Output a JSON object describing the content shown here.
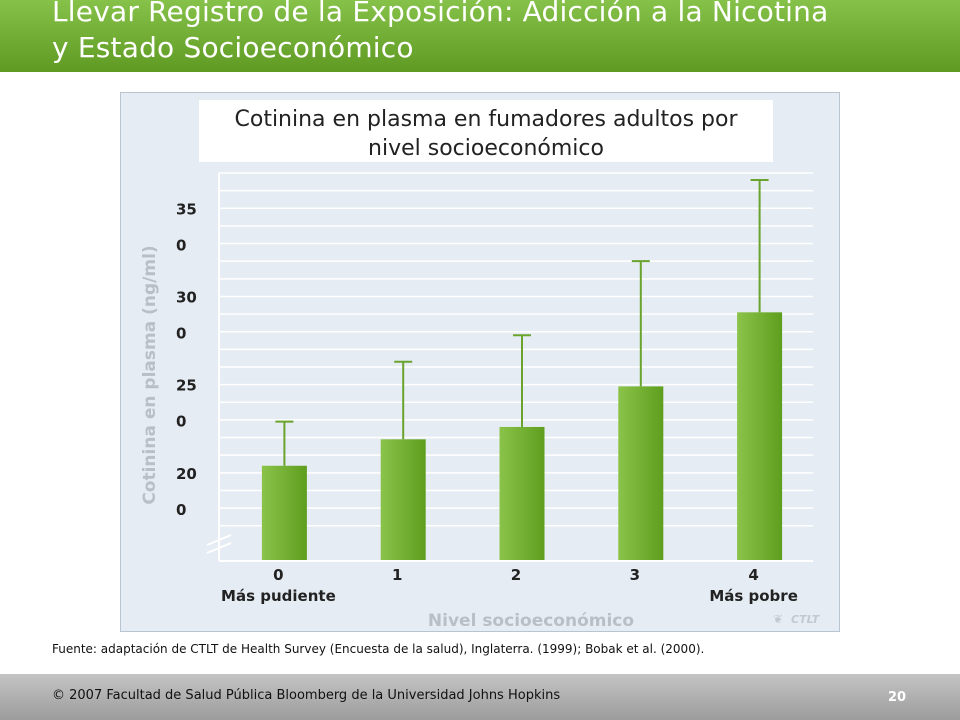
{
  "header": {
    "title_line1": "Llevar Registro de la Exposición: Adicción a la Nicotina",
    "title_line2": "y Estado Socioeconómico"
  },
  "chart_data": {
    "type": "bar",
    "title_line1": "Cotinina en plasma en fumadores adultos por",
    "title_line2": "nivel socioeconómico",
    "xlabel": "Nivel socioeconómico",
    "ylabel": "Cotinina en plasma (ng/ml)",
    "categories": [
      "0",
      "1",
      "2",
      "3",
      "4"
    ],
    "category_sublabels": [
      "Más pudiente",
      "",
      "",
      "",
      "Más pobre"
    ],
    "values": [
      204,
      219,
      226,
      249,
      291
    ],
    "error_upper": [
      229,
      263,
      278,
      320,
      366
    ],
    "ylim": [
      150,
      370
    ],
    "axis_break": true,
    "y_tick_labels": [
      {
        "line1": "35",
        "line2": "0",
        "value": 350
      },
      {
        "line1": "30",
        "line2": "0",
        "value": 300
      },
      {
        "line1": "25",
        "line2": "0",
        "value": 250
      },
      {
        "line1": "20",
        "line2": "0",
        "value": 200
      }
    ],
    "grid": true,
    "watermark": "CTLT",
    "colors": {
      "bar_light": "#8bc34a",
      "bar_dark": "#5e9e1e",
      "error_bar": "#6aa32e",
      "grid": "#ffffff"
    }
  },
  "source": "Fuente: adaptación de CTLT de Health Survey (Encuesta de la salud), Inglaterra. (1999); Bobak et al. (2000).",
  "footer": {
    "copyright_symbol": "©",
    "copyright": "2007 Facultad de Salud Pública Bloomberg de la Universidad Johns Hopkins",
    "page_number": "20"
  }
}
